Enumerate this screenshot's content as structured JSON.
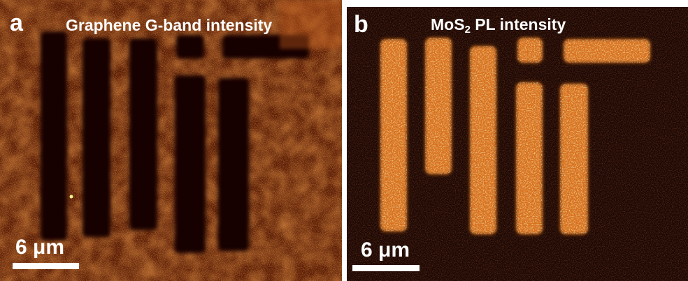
{
  "panel_a": {
    "letter": "a",
    "title": "Graphene G-band intensity",
    "scale_label": "6 μm",
    "colors": {
      "background": "#5a1e06",
      "bright": "#c2521b",
      "dark": "#150503"
    }
  },
  "panel_b": {
    "letter": "b",
    "title_prefix": "MoS",
    "title_subscript": "2",
    "title_suffix": " PL intensity",
    "scale_label": "6 μm",
    "colors": {
      "background": "#1c0804",
      "bar": "#d8711a",
      "bright": "#f7b93a"
    }
  }
}
